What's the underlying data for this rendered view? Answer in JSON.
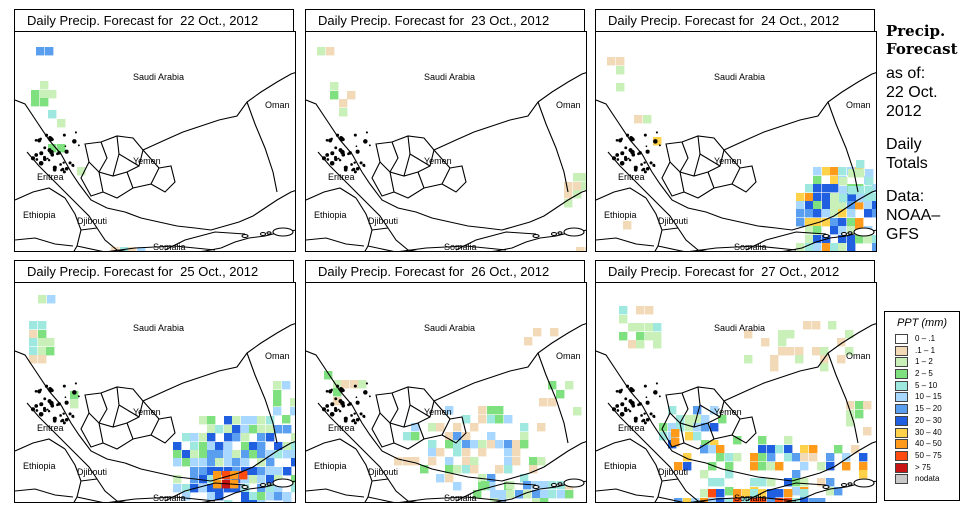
{
  "title_prefix": "Daily Precip. Forecast for",
  "panels": [
    {
      "date": "22 Oct., 2012"
    },
    {
      "date": "23 Oct., 2012"
    },
    {
      "date": "24 Oct., 2012"
    },
    {
      "date": "25 Oct., 2012"
    },
    {
      "date": "26 Oct., 2012"
    },
    {
      "date": "27 Oct., 2012"
    }
  ],
  "map_labels": {
    "saudi": "Saudi Arabia",
    "oman": "Oman",
    "yemen": "Yemen",
    "eritrea": "Eritrea",
    "ethiopia": "Ethiopia",
    "djibouti": "Djibouti",
    "somalia": "Somalia"
  },
  "sidebar": {
    "title1": "Precip.",
    "title2": "Forecast",
    "asof1": "as of:",
    "asof2": "22 Oct.",
    "asof3": "2012",
    "daily1": "Daily",
    "daily2": "Totals",
    "data1": "Data:",
    "data2": "NOAA–",
    "data3": "GFS"
  },
  "legend": {
    "title": "PPT (mm)",
    "items": [
      {
        "label": "0 – .1",
        "color": "#ffffff"
      },
      {
        "label": ".1 – 1",
        "color": "#f2d9b8"
      },
      {
        "label": "1 – 2",
        "color": "#c8f0b8"
      },
      {
        "label": "2 – 5",
        "color": "#7fe07f"
      },
      {
        "label": "5 – 10",
        "color": "#9fe8e0"
      },
      {
        "label": "10 – 15",
        "color": "#a8d8ff"
      },
      {
        "label": "15 – 20",
        "color": "#5a9ef0"
      },
      {
        "label": "20 – 30",
        "color": "#1f5fe0"
      },
      {
        "label": "30 – 40",
        "color": "#ffd24a"
      },
      {
        "label": "40 – 50",
        "color": "#ff9a1a"
      },
      {
        "label": "50 – 75",
        "color": "#ff4a10"
      },
      {
        "label": "> 75",
        "color": "#c81414"
      },
      {
        "label": "nodata",
        "color": "#c8c8c8"
      }
    ]
  }
}
